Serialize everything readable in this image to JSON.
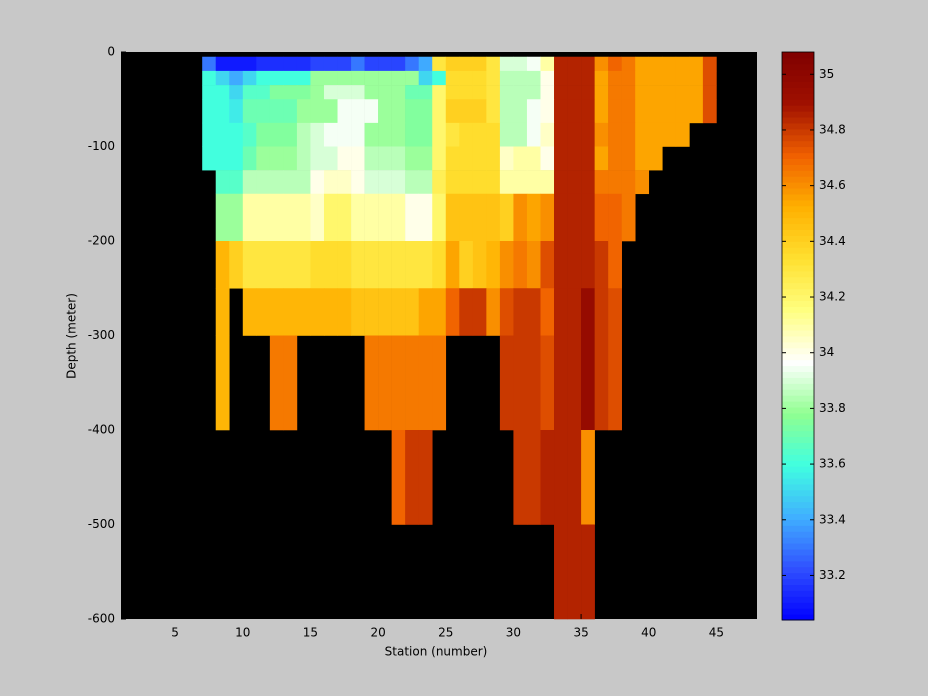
{
  "chart_data": {
    "type": "heatmap",
    "xlabel": "Station (number)",
    "ylabel": "Depth (meter)",
    "xlim": [
      1,
      48
    ],
    "xticks": [
      5,
      10,
      15,
      20,
      25,
      30,
      35,
      40,
      45
    ],
    "ylim": [
      -600,
      0
    ],
    "yticks": [
      -600,
      -500,
      -400,
      -300,
      -200,
      -100,
      0
    ],
    "xbins": [
      7,
      8,
      9,
      10,
      11,
      12,
      13,
      14,
      15,
      16,
      17,
      18,
      19,
      20,
      21,
      22,
      23,
      24,
      25,
      26,
      27,
      28,
      29,
      30,
      31,
      32,
      33,
      34,
      35,
      36,
      37,
      38,
      39,
      40,
      41,
      42,
      43,
      44,
      45
    ],
    "ybins": [
      -5,
      -20,
      -35,
      -50,
      -75,
      -100,
      -125,
      -150,
      -200,
      -250,
      -300,
      -400,
      -500,
      -600
    ],
    "clim": [
      33.04,
      35.08
    ],
    "cticks": [
      33.2,
      33.4,
      33.6,
      33.8,
      34,
      34.2,
      34.4,
      34.6,
      34.8,
      35
    ],
    "colormap": [
      "#0000ff",
      "#3050ff",
      "#40b0ff",
      "#40ffe0",
      "#90ff90",
      "#ffffff",
      "#ffff80",
      "#ffe030",
      "#ffb000",
      "#f06000",
      "#a01000",
      "#800000"
    ],
    "background": "#000000",
    "values": [
      [
        33.3,
        33.1,
        33.1,
        33.1,
        33.15,
        33.15,
        33.15,
        33.15,
        33.2,
        33.2,
        33.2,
        33.3,
        33.2,
        33.2,
        33.2,
        33.3,
        33.4,
        34.3,
        34.4,
        34.4,
        34.4,
        34.3,
        33.9,
        33.9,
        33.95,
        34.1,
        34.85,
        34.85,
        34.85,
        34.6,
        34.7,
        34.65,
        34.55,
        34.55,
        34.55,
        34.55,
        34.55,
        34.75
      ],
      [
        33.6,
        33.5,
        33.4,
        33.5,
        33.6,
        33.6,
        33.6,
        33.6,
        33.8,
        33.8,
        33.8,
        33.8,
        33.8,
        33.8,
        33.8,
        33.8,
        33.5,
        33.6,
        34.35,
        34.35,
        34.35,
        34.3,
        33.85,
        33.85,
        33.85,
        34.0,
        34.85,
        34.85,
        34.85,
        34.55,
        34.65,
        34.65,
        34.55,
        34.55,
        34.55,
        34.55,
        34.55,
        34.75
      ],
      [
        33.6,
        33.6,
        33.5,
        33.65,
        33.65,
        33.75,
        33.75,
        33.75,
        33.8,
        33.9,
        33.9,
        33.9,
        33.8,
        33.8,
        33.8,
        33.7,
        33.7,
        34.2,
        34.35,
        34.35,
        34.35,
        34.3,
        33.85,
        33.85,
        33.85,
        34.0,
        34.85,
        34.85,
        34.85,
        34.55,
        34.65,
        34.65,
        34.55,
        34.55,
        34.55,
        34.55,
        34.55,
        34.75
      ],
      [
        33.6,
        33.6,
        33.55,
        33.7,
        33.7,
        33.7,
        33.7,
        33.8,
        33.8,
        33.8,
        33.95,
        33.95,
        33.95,
        33.8,
        33.8,
        33.75,
        33.75,
        34.2,
        34.4,
        34.4,
        34.4,
        34.3,
        33.85,
        33.85,
        33.95,
        34.0,
        34.85,
        34.85,
        34.85,
        34.55,
        34.65,
        34.65,
        34.55,
        34.55,
        34.55,
        34.55,
        34.55,
        34.75
      ],
      [
        33.6,
        33.6,
        33.6,
        33.65,
        33.75,
        33.75,
        33.75,
        33.85,
        33.9,
        33.95,
        33.95,
        33.95,
        33.8,
        33.8,
        33.8,
        33.75,
        33.75,
        34.2,
        34.3,
        34.35,
        34.35,
        34.35,
        33.85,
        33.85,
        33.95,
        34.05,
        34.85,
        34.85,
        34.85,
        34.6,
        34.65,
        34.65,
        34.55,
        34.55,
        34.55,
        34.55,
        null,
        null
      ],
      [
        33.6,
        33.6,
        33.6,
        33.7,
        33.8,
        33.8,
        33.8,
        33.85,
        33.9,
        33.9,
        34.0,
        34.0,
        33.85,
        33.85,
        33.85,
        33.8,
        33.8,
        34.2,
        34.35,
        34.35,
        34.35,
        34.35,
        34.05,
        34.1,
        34.1,
        34.0,
        34.85,
        34.85,
        34.85,
        34.55,
        34.65,
        34.65,
        34.55,
        34.55,
        null,
        null,
        null,
        null
      ],
      [
        null,
        33.65,
        33.65,
        33.85,
        33.85,
        33.85,
        33.85,
        33.85,
        34.0,
        34.05,
        34.05,
        34.0,
        33.9,
        33.9,
        33.9,
        33.85,
        33.85,
        34.25,
        34.35,
        34.35,
        34.35,
        34.35,
        34.1,
        34.1,
        34.1,
        34.1,
        34.85,
        34.85,
        34.85,
        34.65,
        34.65,
        34.65,
        34.6,
        null,
        null,
        null,
        null,
        null
      ],
      [
        null,
        33.8,
        33.8,
        34.1,
        34.1,
        34.1,
        34.1,
        34.1,
        34.05,
        34.2,
        34.2,
        34.1,
        34.1,
        34.1,
        34.1,
        34.0,
        34.0,
        34.2,
        34.45,
        34.45,
        34.45,
        34.45,
        34.4,
        34.6,
        34.55,
        34.6,
        34.85,
        34.85,
        34.85,
        34.7,
        34.7,
        34.65,
        null,
        null,
        null,
        null,
        null,
        null
      ],
      [
        null,
        34.5,
        34.4,
        34.3,
        34.3,
        34.3,
        34.3,
        34.3,
        34.35,
        34.35,
        34.35,
        34.3,
        34.3,
        34.3,
        34.3,
        34.3,
        34.3,
        34.35,
        34.55,
        34.4,
        34.45,
        34.5,
        34.6,
        34.65,
        34.6,
        34.75,
        34.85,
        34.85,
        34.85,
        34.8,
        34.7,
        null,
        null,
        null,
        null,
        null,
        null,
        null
      ],
      [
        null,
        34.5,
        null,
        34.5,
        34.5,
        34.5,
        34.5,
        34.5,
        34.5,
        34.5,
        34.5,
        34.45,
        34.45,
        34.45,
        34.45,
        34.45,
        34.55,
        34.55,
        34.7,
        34.8,
        34.8,
        34.6,
        34.75,
        34.8,
        34.8,
        34.7,
        34.85,
        34.85,
        34.95,
        34.8,
        34.75,
        null,
        null,
        null,
        null,
        null,
        null,
        null
      ],
      [
        null,
        34.5,
        null,
        null,
        null,
        34.65,
        34.65,
        null,
        null,
        null,
        null,
        null,
        34.65,
        34.65,
        34.65,
        34.65,
        34.65,
        34.65,
        null,
        null,
        null,
        null,
        34.8,
        34.8,
        34.8,
        34.75,
        34.85,
        34.85,
        34.95,
        34.8,
        34.75,
        null,
        null,
        null,
        null,
        null,
        null,
        null
      ],
      [
        null,
        null,
        null,
        null,
        null,
        null,
        null,
        null,
        null,
        null,
        null,
        null,
        null,
        null,
        34.7,
        34.8,
        34.8,
        null,
        null,
        null,
        null,
        null,
        null,
        34.8,
        34.8,
        34.85,
        34.85,
        34.85,
        34.6,
        null,
        null,
        null,
        null,
        null,
        null,
        null,
        null,
        null
      ],
      [
        null,
        null,
        null,
        null,
        null,
        null,
        null,
        null,
        null,
        null,
        null,
        null,
        null,
        null,
        null,
        null,
        null,
        null,
        null,
        null,
        null,
        null,
        null,
        null,
        null,
        null,
        34.85,
        34.85,
        34.85,
        null,
        null,
        null,
        null,
        null,
        null,
        null,
        null,
        null
      ]
    ]
  }
}
